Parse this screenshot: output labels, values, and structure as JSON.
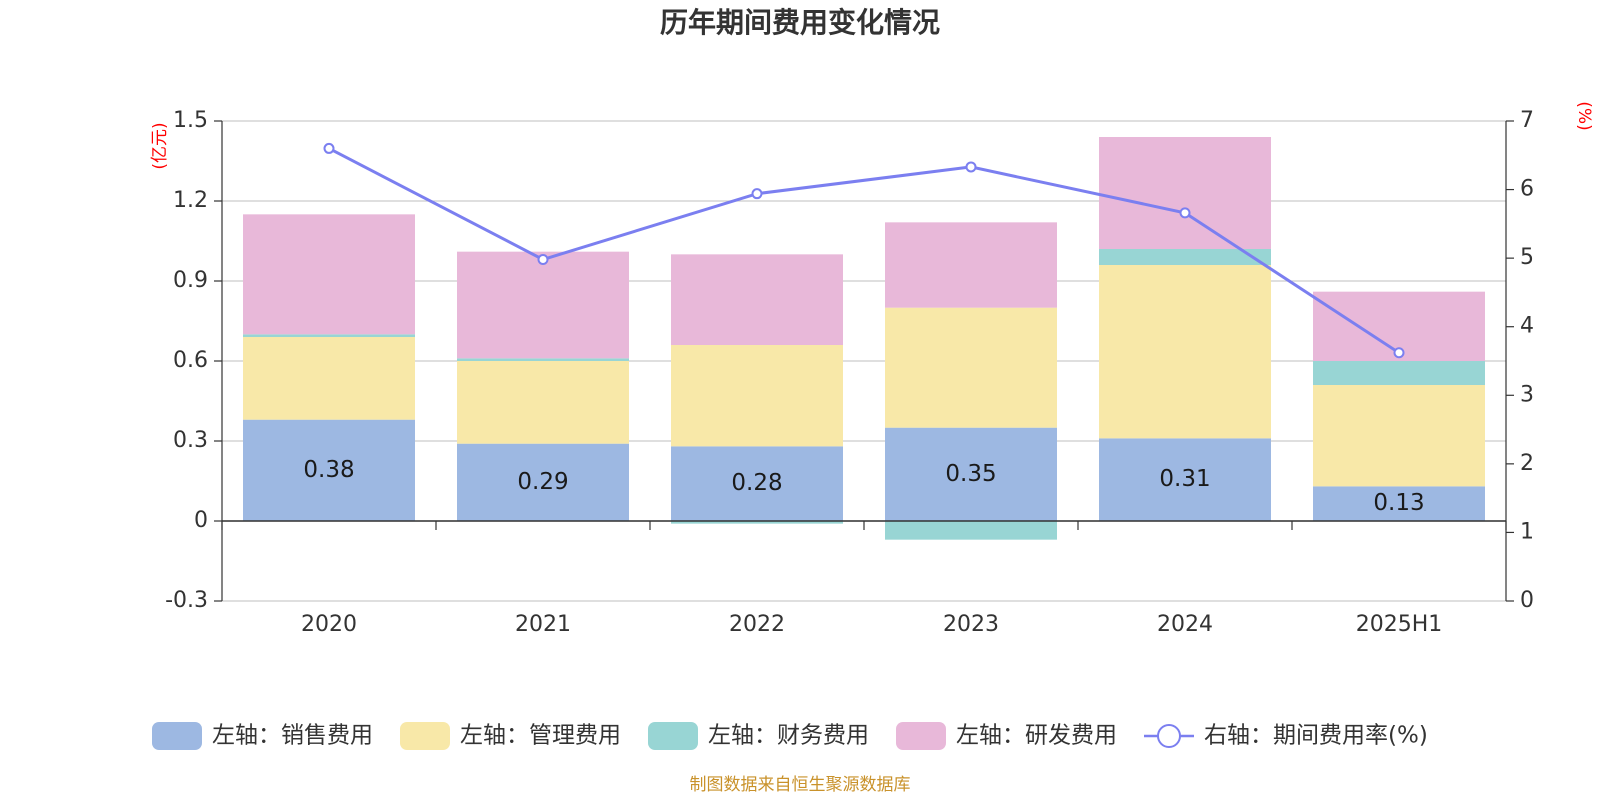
{
  "chart_data": {
    "type": "bar",
    "stacked": true,
    "title": "历年期间费用变化情况",
    "categories": [
      "2020",
      "2021",
      "2022",
      "2023",
      "2024",
      "2025H1"
    ],
    "left_axis": {
      "unit": "(亿元)",
      "min": -0.3,
      "max": 1.5,
      "ticks": [
        "-0.3",
        "0",
        "0.3",
        "0.6",
        "0.9",
        "1.2",
        "1.5"
      ]
    },
    "right_axis": {
      "unit": "(%)",
      "min": 0,
      "max": 7,
      "ticks": [
        "0",
        "1",
        "2",
        "3",
        "4",
        "5",
        "6",
        "7"
      ]
    },
    "grid": true,
    "legend_position": "bottom",
    "series": [
      {
        "name": "左轴：销售费用",
        "axis": "left",
        "color": "#9db8e2",
        "values": [
          0.38,
          0.29,
          0.28,
          0.35,
          0.31,
          0.13
        ],
        "labels": [
          "0.38",
          "0.29",
          "0.28",
          "0.35",
          "0.31",
          "0.13"
        ]
      },
      {
        "name": "左轴：管理费用",
        "axis": "left",
        "color": "#f8e8a8",
        "values": [
          0.31,
          0.31,
          0.38,
          0.45,
          0.65,
          0.38
        ]
      },
      {
        "name": "左轴：财务费用",
        "axis": "left",
        "color": "#98d5d4",
        "values": [
          0.01,
          0.01,
          -0.01,
          -0.07,
          0.06,
          0.09
        ]
      },
      {
        "name": "左轴：研发费用",
        "axis": "left",
        "color": "#e8b8d9",
        "values": [
          0.45,
          0.4,
          0.34,
          0.32,
          0.42,
          0.26
        ]
      },
      {
        "name": "右轴：期间费用率(%)",
        "axis": "right",
        "type": "line",
        "color": "#7b7ff0",
        "values": [
          6.6,
          4.98,
          5.94,
          6.33,
          5.66,
          3.62
        ]
      }
    ],
    "source": "制图数据来自恒生聚源数据库"
  }
}
